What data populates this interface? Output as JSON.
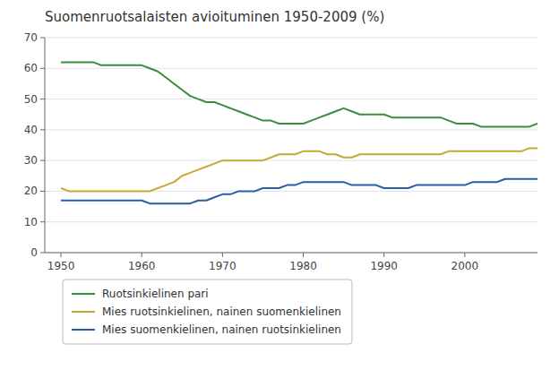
{
  "chart_data": {
    "type": "line",
    "title": "Suomenruotsalaisten avioituminen 1950-2009  (%)",
    "x": [
      1950,
      1951,
      1952,
      1953,
      1954,
      1955,
      1956,
      1957,
      1958,
      1959,
      1960,
      1961,
      1962,
      1963,
      1964,
      1965,
      1966,
      1967,
      1968,
      1969,
      1970,
      1971,
      1972,
      1973,
      1974,
      1975,
      1976,
      1977,
      1978,
      1979,
      1980,
      1981,
      1982,
      1983,
      1984,
      1985,
      1986,
      1987,
      1988,
      1989,
      1990,
      1991,
      1992,
      1993,
      1994,
      1995,
      1996,
      1997,
      1998,
      1999,
      2000,
      2001,
      2002,
      2003,
      2004,
      2005,
      2006,
      2007,
      2008,
      2009
    ],
    "xlim": [
      1948,
      2009
    ],
    "xticks": [
      1950,
      1960,
      1970,
      1980,
      1990,
      2000
    ],
    "ylim": [
      0,
      70
    ],
    "yticks": [
      0,
      10,
      20,
      30,
      40,
      50,
      60,
      70
    ],
    "grid": true,
    "legend": "bottom",
    "series": [
      {
        "name": "Ruotsinkielinen pari",
        "color": "#3d8c3d",
        "values": [
          62,
          62,
          62,
          62,
          62,
          61,
          61,
          61,
          61,
          61,
          61,
          60,
          59,
          57,
          55,
          53,
          51,
          50,
          49,
          49,
          48,
          47,
          46,
          45,
          44,
          43,
          43,
          42,
          42,
          42,
          42,
          43,
          44,
          45,
          46,
          47,
          46,
          45,
          45,
          45,
          45,
          44,
          44,
          44,
          44,
          44,
          44,
          44,
          43,
          42,
          42,
          42,
          41,
          41,
          41,
          41,
          41,
          41,
          41,
          42
        ]
      },
      {
        "name": "Mies ruotsinkielinen, nainen suomenkielinen",
        "color": "#c8a832",
        "values": [
          21,
          20,
          20,
          20,
          20,
          20,
          20,
          20,
          20,
          20,
          20,
          20,
          21,
          22,
          23,
          25,
          26,
          27,
          28,
          29,
          30,
          30,
          30,
          30,
          30,
          30,
          31,
          32,
          32,
          32,
          33,
          33,
          33,
          32,
          32,
          31,
          31,
          32,
          32,
          32,
          32,
          32,
          32,
          32,
          32,
          32,
          32,
          32,
          33,
          33,
          33,
          33,
          33,
          33,
          33,
          33,
          33,
          33,
          34,
          34
        ]
      },
      {
        "name": "Mies suomenkielinen, nainen ruotsinkielinen",
        "color": "#2b5ca8",
        "values": [
          17,
          17,
          17,
          17,
          17,
          17,
          17,
          17,
          17,
          17,
          17,
          16,
          16,
          16,
          16,
          16,
          16,
          17,
          17,
          18,
          19,
          19,
          20,
          20,
          20,
          21,
          21,
          21,
          22,
          22,
          23,
          23,
          23,
          23,
          23,
          23,
          22,
          22,
          22,
          22,
          21,
          21,
          21,
          21,
          22,
          22,
          22,
          22,
          22,
          22,
          22,
          23,
          23,
          23,
          23,
          24,
          24,
          24,
          24,
          24
        ]
      }
    ]
  }
}
